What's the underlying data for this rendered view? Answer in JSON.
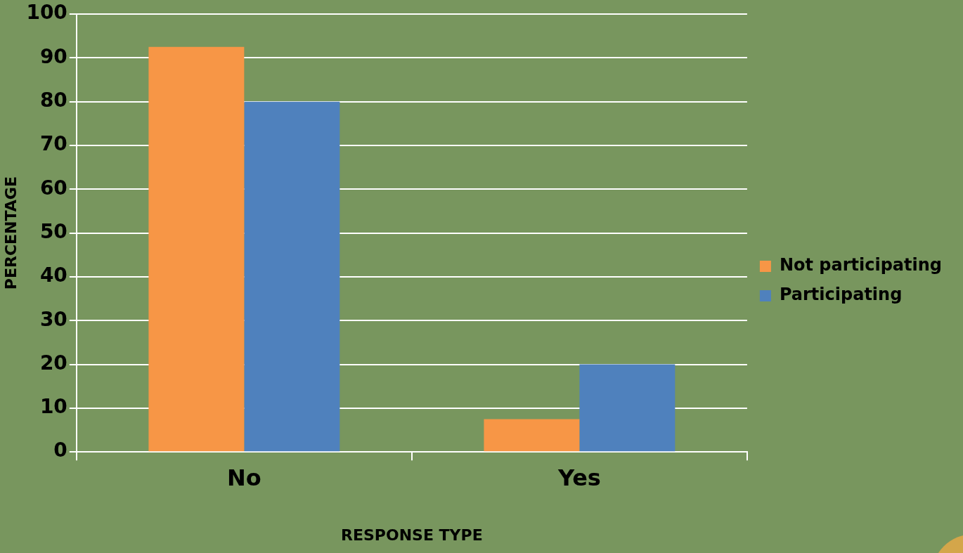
{
  "chart_data": {
    "type": "bar",
    "xlabel": "RESPONSE TYPE",
    "ylabel": "PERCENTAGE",
    "categories": [
      "No",
      "Yes"
    ],
    "series": [
      {
        "name": "Not participating",
        "color": "#f79646",
        "values": [
          92.5,
          7.5
        ]
      },
      {
        "name": "Participating",
        "color": "#4f81bd",
        "values": [
          80,
          20
        ]
      }
    ],
    "ylim": [
      0,
      100
    ],
    "yticks": [
      0,
      10,
      20,
      30,
      40,
      50,
      60,
      70,
      80,
      90,
      100
    ],
    "grid": "y",
    "legend": "right"
  }
}
